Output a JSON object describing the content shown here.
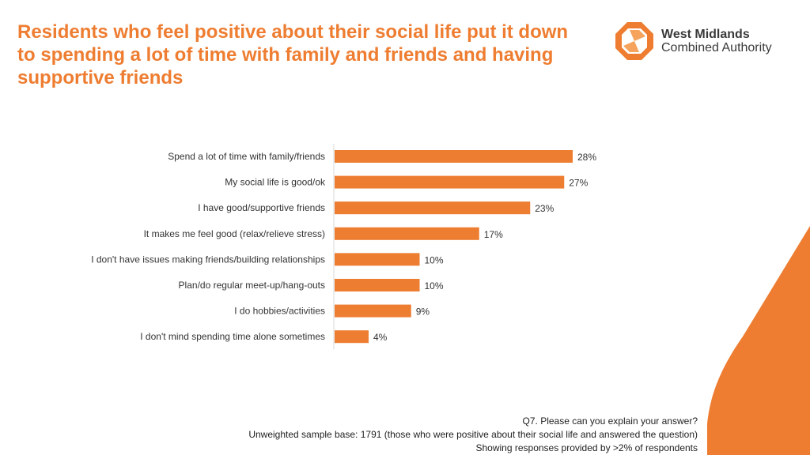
{
  "title": "Residents who feel positive about their social life put it down to spending a lot of time with family and friends and having supportive friends",
  "logo": {
    "line1": "West Midlands",
    "line2": "Combined Authority"
  },
  "colors": {
    "accent": "#ee7d31",
    "bar": "#ed7d31",
    "text": "#222222"
  },
  "chart_data": {
    "type": "bar",
    "orientation": "horizontal",
    "categories": [
      "Spend a lot of time with family/friends",
      "My social life is good/ok",
      "I have good/supportive friends",
      "It makes me feel good (relax/relieve stress)",
      "I don't have issues making friends/building relationships",
      "Plan/do regular meet-up/hang-outs",
      "I do hobbies/activities",
      "I don't mind spending time alone sometimes"
    ],
    "values": [
      28,
      27,
      23,
      17,
      10,
      10,
      9,
      4
    ],
    "value_labels": [
      "28%",
      "27%",
      "23%",
      "17%",
      "10%",
      "10%",
      "9%",
      "4%"
    ],
    "unit": "%",
    "xlim": [
      0,
      30
    ],
    "grid": false,
    "legend": "none"
  },
  "footnote": {
    "question": "Q7. Please can you explain your answer?",
    "base": "Unweighted sample base: 1791 (those who were positive about their social life and answered the question)",
    "note": "Showing responses provided by >2% of respondents"
  }
}
